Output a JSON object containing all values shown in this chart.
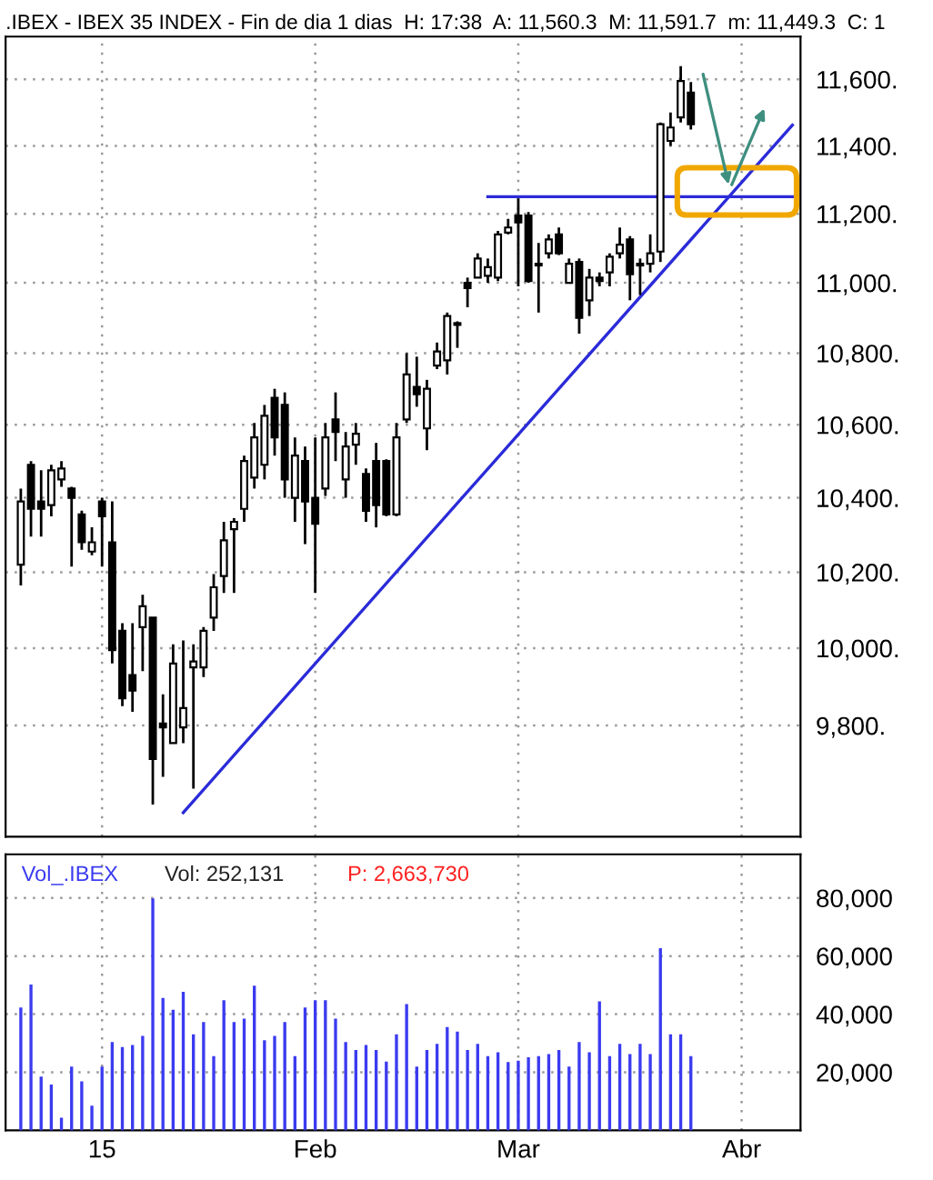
{
  "chart_data": [
    {
      "type": "candlestick",
      "title": ".IBEX - IBEX 35 INDEX - Fin de dia 1 dias  H: 17:38  A: 11,560.3  M: 11,591.7  m: 11,449.3  C: 1",
      "categories": [
        null,
        null,
        null,
        null,
        null,
        null,
        null,
        null,
        null,
        null,
        null,
        null,
        null,
        null,
        null,
        null,
        null,
        null,
        null,
        null,
        null,
        null,
        null,
        null,
        null,
        null,
        null,
        null,
        null,
        null,
        null,
        null,
        null,
        null,
        null,
        null,
        null,
        null,
        null,
        null,
        null,
        null,
        null,
        null,
        null,
        null,
        null,
        null,
        null,
        null,
        null,
        null,
        null,
        null,
        null,
        null,
        null,
        null,
        null,
        null,
        null,
        null,
        null,
        null,
        null,
        null,
        null,
        null,
        null,
        null,
        null,
        null,
        null,
        null,
        null,
        null,
        null
      ],
      "ohlc": [
        [
          10220,
          10425,
          10165,
          10390
        ],
        [
          10490,
          10500,
          10295,
          10370
        ],
        [
          10390,
          10475,
          10295,
          10370
        ],
        [
          10380,
          10490,
          10350,
          10475
        ],
        [
          10450,
          10500,
          10430,
          10480
        ],
        [
          10425,
          10430,
          10215,
          10400
        ],
        [
          10355,
          10365,
          10260,
          10280
        ],
        [
          10255,
          10320,
          10245,
          10280
        ],
        [
          10390,
          10400,
          10215,
          10350
        ],
        [
          10280,
          10390,
          9960,
          9995
        ],
        [
          10045,
          10065,
          9850,
          9870
        ],
        [
          9930,
          10065,
          9835,
          9890
        ],
        [
          10055,
          10140,
          9940,
          10110
        ],
        [
          10080,
          10080,
          9600,
          9715
        ],
        [
          9805,
          9880,
          9670,
          9795
        ],
        [
          9755,
          10010,
          9755,
          9960
        ],
        [
          9795,
          10020,
          9755,
          9845
        ],
        [
          9950,
          10010,
          9640,
          9965
        ],
        [
          9950,
          10055,
          9925,
          10045
        ],
        [
          10080,
          10195,
          10045,
          10160
        ],
        [
          10190,
          10335,
          10145,
          10285
        ],
        [
          10315,
          10345,
          10145,
          10335
        ],
        [
          10370,
          10515,
          10335,
          10500
        ],
        [
          10455,
          10605,
          10425,
          10565
        ],
        [
          10490,
          10655,
          10450,
          10625
        ],
        [
          10675,
          10700,
          10515,
          10565
        ],
        [
          10655,
          10690,
          10400,
          10450
        ],
        [
          10400,
          10565,
          10335,
          10515
        ],
        [
          10500,
          10540,
          10275,
          10390
        ],
        [
          10400,
          10565,
          10145,
          10330
        ],
        [
          10425,
          10605,
          10405,
          10565
        ],
        [
          10615,
          10690,
          10500,
          10580
        ],
        [
          10450,
          10580,
          10400,
          10540
        ],
        [
          10545,
          10605,
          10490,
          10575
        ],
        [
          10465,
          10480,
          10335,
          10365
        ],
        [
          10500,
          10550,
          10320,
          10380
        ],
        [
          10500,
          10505,
          10350,
          10355
        ],
        [
          10355,
          10605,
          10350,
          10565
        ],
        [
          10615,
          10800,
          10605,
          10740
        ],
        [
          10705,
          10790,
          10650,
          10685
        ],
        [
          10590,
          10725,
          10530,
          10700
        ],
        [
          10765,
          10830,
          10755,
          10805
        ],
        [
          10780,
          10915,
          10740,
          10905
        ],
        [
          10885,
          10890,
          10815,
          10880
        ],
        [
          11000,
          11015,
          10930,
          10985
        ],
        [
          11015,
          11085,
          11015,
          11070
        ],
        [
          11020,
          11070,
          11000,
          11045
        ],
        [
          11015,
          11150,
          11005,
          11140
        ],
        [
          11145,
          11185,
          11140,
          11160
        ],
        [
          11195,
          11245,
          10990,
          11175
        ],
        [
          11195,
          11205,
          11000,
          11005
        ],
        [
          11055,
          11115,
          10915,
          11050
        ],
        [
          11085,
          11140,
          11070,
          11125
        ],
        [
          11140,
          11160,
          11080,
          11085
        ],
        [
          11000,
          11070,
          11000,
          11055
        ],
        [
          11060,
          11070,
          10855,
          10900
        ],
        [
          10950,
          11040,
          10905,
          11015
        ],
        [
          11015,
          11030,
          10990,
          11005
        ],
        [
          11030,
          11085,
          10990,
          11075
        ],
        [
          11085,
          11160,
          11070,
          11110
        ],
        [
          11125,
          11135,
          10950,
          11025
        ],
        [
          11055,
          11070,
          10965,
          11050
        ],
        [
          11055,
          11140,
          11030,
          11085
        ],
        [
          11090,
          11470,
          11060,
          11465
        ],
        [
          11415,
          11500,
          11400,
          11455
        ],
        [
          11485,
          11640,
          11470,
          11595
        ],
        [
          11560,
          11592,
          11449,
          11465
        ],
        null,
        null,
        null,
        null,
        null,
        null,
        null,
        null,
        null,
        null
      ],
      "series": [
        {
          "type": "line",
          "color": "#2b2bd9",
          "values": [
            null,
            null,
            null,
            null,
            null,
            null,
            null,
            null,
            null,
            null,
            null,
            null,
            null,
            null,
            null,
            null,
            9580,
            null,
            null,
            null,
            null,
            null,
            null,
            null,
            null,
            null,
            null,
            null,
            null,
            null,
            null,
            null,
            null,
            null,
            null,
            null,
            null,
            null,
            null,
            null,
            null,
            null,
            null,
            null,
            null,
            null,
            null,
            null,
            null,
            null,
            null,
            null,
            null,
            null,
            null,
            null,
            null,
            null,
            null,
            null,
            null,
            null,
            null,
            null,
            null,
            null,
            null,
            null,
            null,
            null,
            null,
            null,
            null,
            null,
            null,
            null,
            11462
          ]
        },
        {
          "type": "line",
          "color": "#2b2bd9",
          "values": [
            null,
            null,
            null,
            null,
            null,
            null,
            null,
            null,
            null,
            null,
            null,
            null,
            null,
            null,
            null,
            null,
            null,
            null,
            null,
            null,
            null,
            null,
            null,
            null,
            null,
            null,
            null,
            null,
            null,
            null,
            null,
            null,
            null,
            null,
            null,
            null,
            null,
            null,
            null,
            null,
            null,
            null,
            null,
            null,
            null,
            null,
            11250,
            null,
            null,
            null,
            null,
            null,
            null,
            null,
            null,
            null,
            null,
            null,
            null,
            null,
            null,
            null,
            null,
            null,
            null,
            null,
            null,
            null,
            null,
            null,
            null,
            null,
            null,
            null,
            null,
            null,
            11250
          ]
        }
      ],
      "log": "y",
      "ylim": [
        9520,
        11730
      ],
      "yticks": [
        {
          "value": 9800,
          "label": "9,800."
        },
        {
          "value": 10000,
          "label": "10,000."
        },
        {
          "value": 10200,
          "label": "10,200."
        },
        {
          "value": 10400,
          "label": "10,400."
        },
        {
          "value": 10600,
          "label": "10,600."
        },
        {
          "value": 10800,
          "label": "10,800."
        },
        {
          "value": 11000,
          "label": "11,000."
        },
        {
          "value": 11200,
          "label": "11,200."
        },
        {
          "value": 11400,
          "label": "11,400."
        },
        {
          "value": 11600,
          "label": "11,600."
        }
      ],
      "tick_labels": "y",
      "grid": true
    },
    {
      "type": "bar",
      "title": "Vol_.IBEX",
      "annotations": [
        "Vol: 252,131",
        "P: 2,663,730"
      ],
      "color": "#3b3bf0",
      "categories": [
        null,
        null,
        null,
        null,
        null,
        null,
        null,
        null,
        "15",
        null,
        null,
        null,
        null,
        null,
        null,
        null,
        null,
        null,
        null,
        null,
        null,
        null,
        null,
        null,
        null,
        null,
        null,
        null,
        null,
        "Feb",
        null,
        null,
        null,
        null,
        null,
        null,
        null,
        null,
        null,
        null,
        null,
        null,
        null,
        null,
        null,
        null,
        null,
        null,
        null,
        "Mar",
        null,
        null,
        null,
        null,
        null,
        null,
        null,
        null,
        null,
        null,
        null,
        null,
        null,
        null,
        null,
        null,
        null,
        null,
        null,
        null,
        null,
        "Abr",
        null,
        null,
        null,
        null,
        null
      ],
      "values": [
        42300,
        50200,
        18500,
        15800,
        4400,
        22000,
        16900,
        8500,
        22000,
        30400,
        28700,
        29400,
        32500,
        79800,
        45600,
        41500,
        47700,
        33100,
        37300,
        25600,
        44800,
        37300,
        38500,
        49800,
        31000,
        32500,
        37300,
        25600,
        42300,
        44800,
        44800,
        38500,
        30400,
        27700,
        29400,
        27700,
        23700,
        33100,
        43500,
        22000,
        27700,
        29800,
        35600,
        34000,
        27700,
        29800,
        25600,
        26900,
        23500,
        24000,
        25200,
        25600,
        26300,
        27700,
        22000,
        30400,
        26900,
        44400,
        25600,
        29800,
        26300,
        29800,
        26300,
        62700,
        33100,
        33100,
        25600,
        null,
        null,
        null,
        null,
        null,
        null,
        null,
        null,
        null,
        null
      ],
      "ylim": [
        0,
        95000
      ],
      "yticks": [
        {
          "value": 20000,
          "label": "20,000"
        },
        {
          "value": 40000,
          "label": "40,000"
        },
        {
          "value": 60000,
          "label": "60,000"
        },
        {
          "value": 80000,
          "label": "80,000"
        }
      ],
      "grid": true
    }
  ]
}
